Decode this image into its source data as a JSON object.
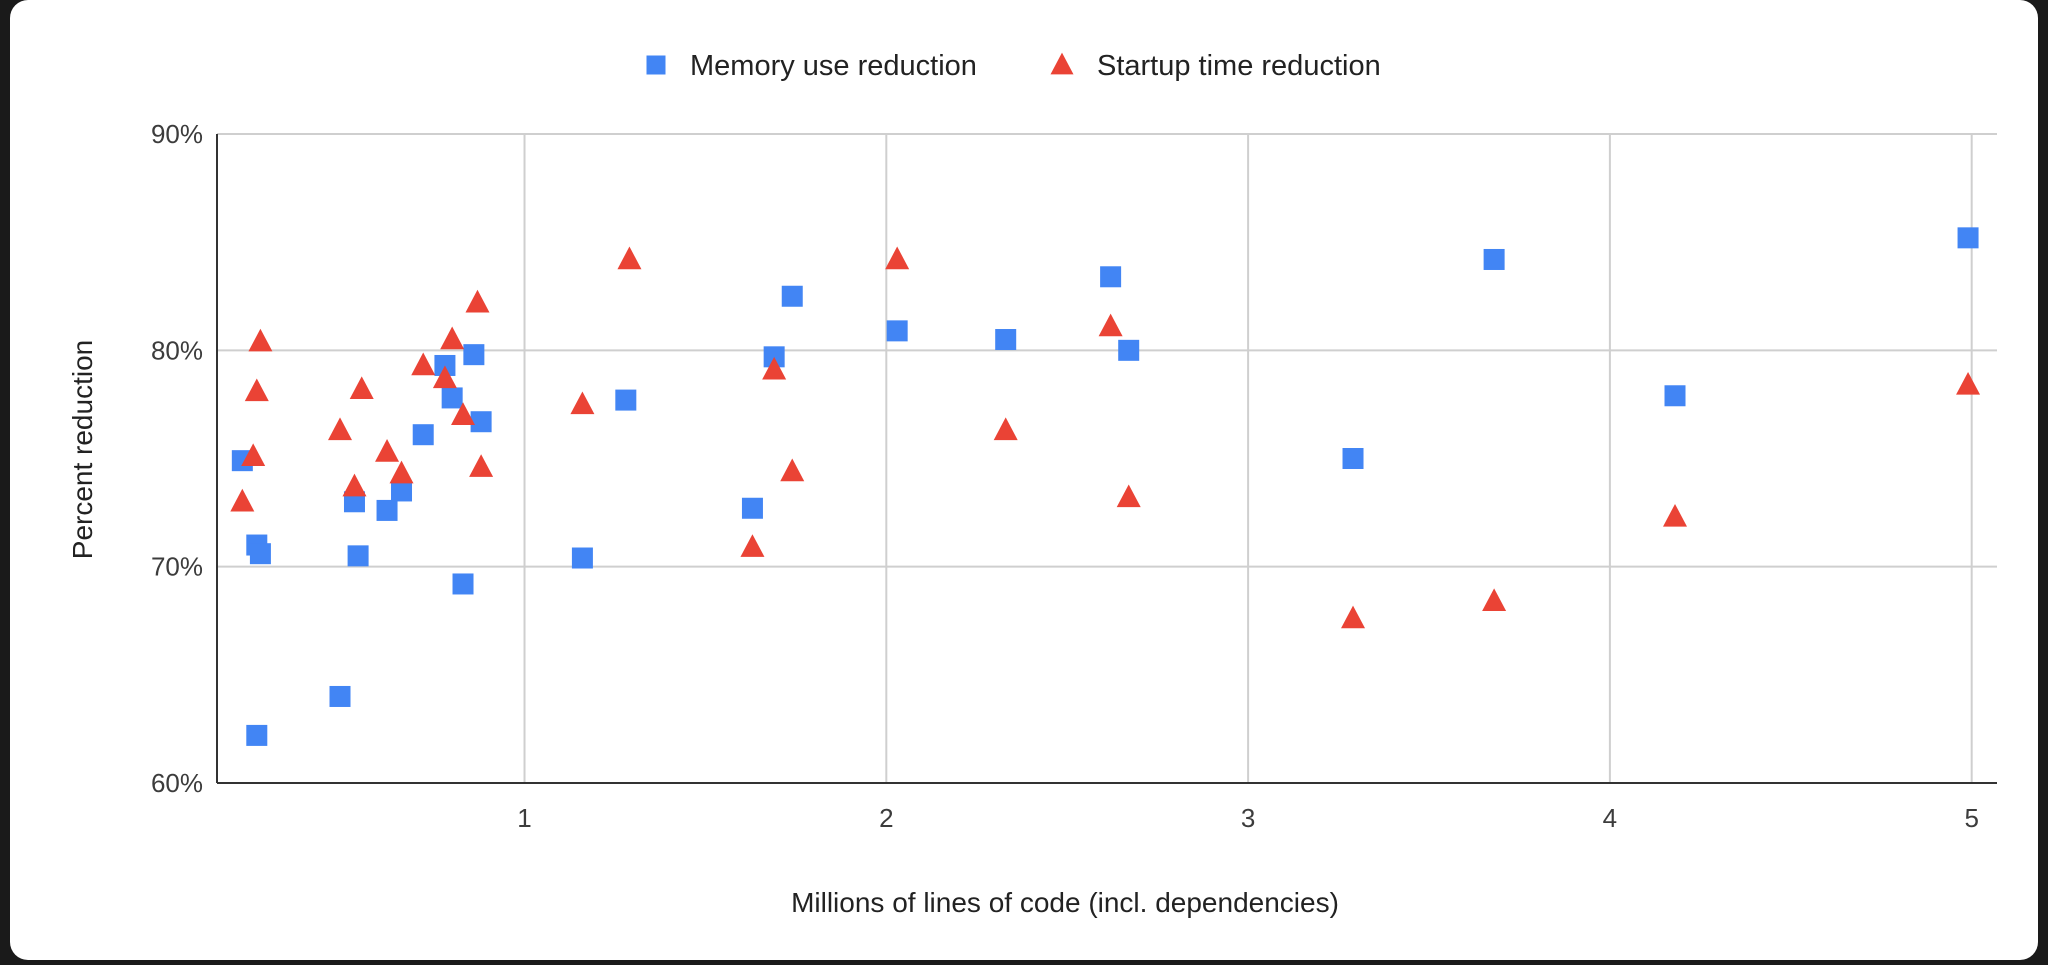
{
  "chart_data": {
    "type": "scatter",
    "title": "",
    "xlabel": "Millions of lines of code (incl. dependencies)",
    "ylabel": "Percent reduction",
    "xlim": [
      0.15,
      5.07
    ],
    "ylim": [
      60,
      90
    ],
    "x_ticks": [
      1,
      2,
      3,
      4,
      5
    ],
    "y_ticks": [
      60,
      70,
      80,
      90
    ],
    "y_tick_labels": [
      "60%",
      "70%",
      "80%",
      "90%"
    ],
    "grid": true,
    "legend_position": "top-center",
    "series": [
      {
        "name": "Memory use reduction",
        "marker": "square",
        "color": "#4285f4",
        "points": [
          [
            0.22,
            74.9
          ],
          [
            0.26,
            71.0
          ],
          [
            0.27,
            70.6
          ],
          [
            0.26,
            62.2
          ],
          [
            0.49,
            64.0
          ],
          [
            0.53,
            73.0
          ],
          [
            0.54,
            70.5
          ],
          [
            0.62,
            72.6
          ],
          [
            0.66,
            73.5
          ],
          [
            0.72,
            76.1
          ],
          [
            0.78,
            79.3
          ],
          [
            0.8,
            77.8
          ],
          [
            0.83,
            69.2
          ],
          [
            0.86,
            79.8
          ],
          [
            0.88,
            76.7
          ],
          [
            1.16,
            70.4
          ],
          [
            1.28,
            77.7
          ],
          [
            1.63,
            72.7
          ],
          [
            1.69,
            79.7
          ],
          [
            1.74,
            82.5
          ],
          [
            2.03,
            80.9
          ],
          [
            2.33,
            80.5
          ],
          [
            2.62,
            83.4
          ],
          [
            2.67,
            80.0
          ],
          [
            3.29,
            75.0
          ],
          [
            3.68,
            84.2
          ],
          [
            4.18,
            77.9
          ],
          [
            4.99,
            85.2
          ]
        ]
      },
      {
        "name": "Startup time reduction",
        "marker": "triangle",
        "color": "#ea4335",
        "points": [
          [
            0.22,
            73.0
          ],
          [
            0.25,
            75.1
          ],
          [
            0.26,
            78.1
          ],
          [
            0.27,
            80.4
          ],
          [
            0.49,
            76.3
          ],
          [
            0.53,
            73.7
          ],
          [
            0.55,
            78.2
          ],
          [
            0.62,
            75.3
          ],
          [
            0.66,
            74.3
          ],
          [
            0.72,
            79.3
          ],
          [
            0.78,
            78.7
          ],
          [
            0.8,
            80.5
          ],
          [
            0.83,
            77.0
          ],
          [
            0.87,
            82.2
          ],
          [
            0.88,
            74.6
          ],
          [
            1.16,
            77.5
          ],
          [
            1.29,
            84.2
          ],
          [
            1.63,
            70.9
          ],
          [
            1.69,
            79.1
          ],
          [
            1.74,
            74.4
          ],
          [
            2.03,
            84.2
          ],
          [
            2.33,
            76.3
          ],
          [
            2.62,
            81.1
          ],
          [
            2.67,
            73.2
          ],
          [
            3.29,
            67.6
          ],
          [
            3.68,
            68.4
          ],
          [
            4.18,
            72.3
          ],
          [
            4.99,
            78.4
          ]
        ]
      }
    ]
  }
}
